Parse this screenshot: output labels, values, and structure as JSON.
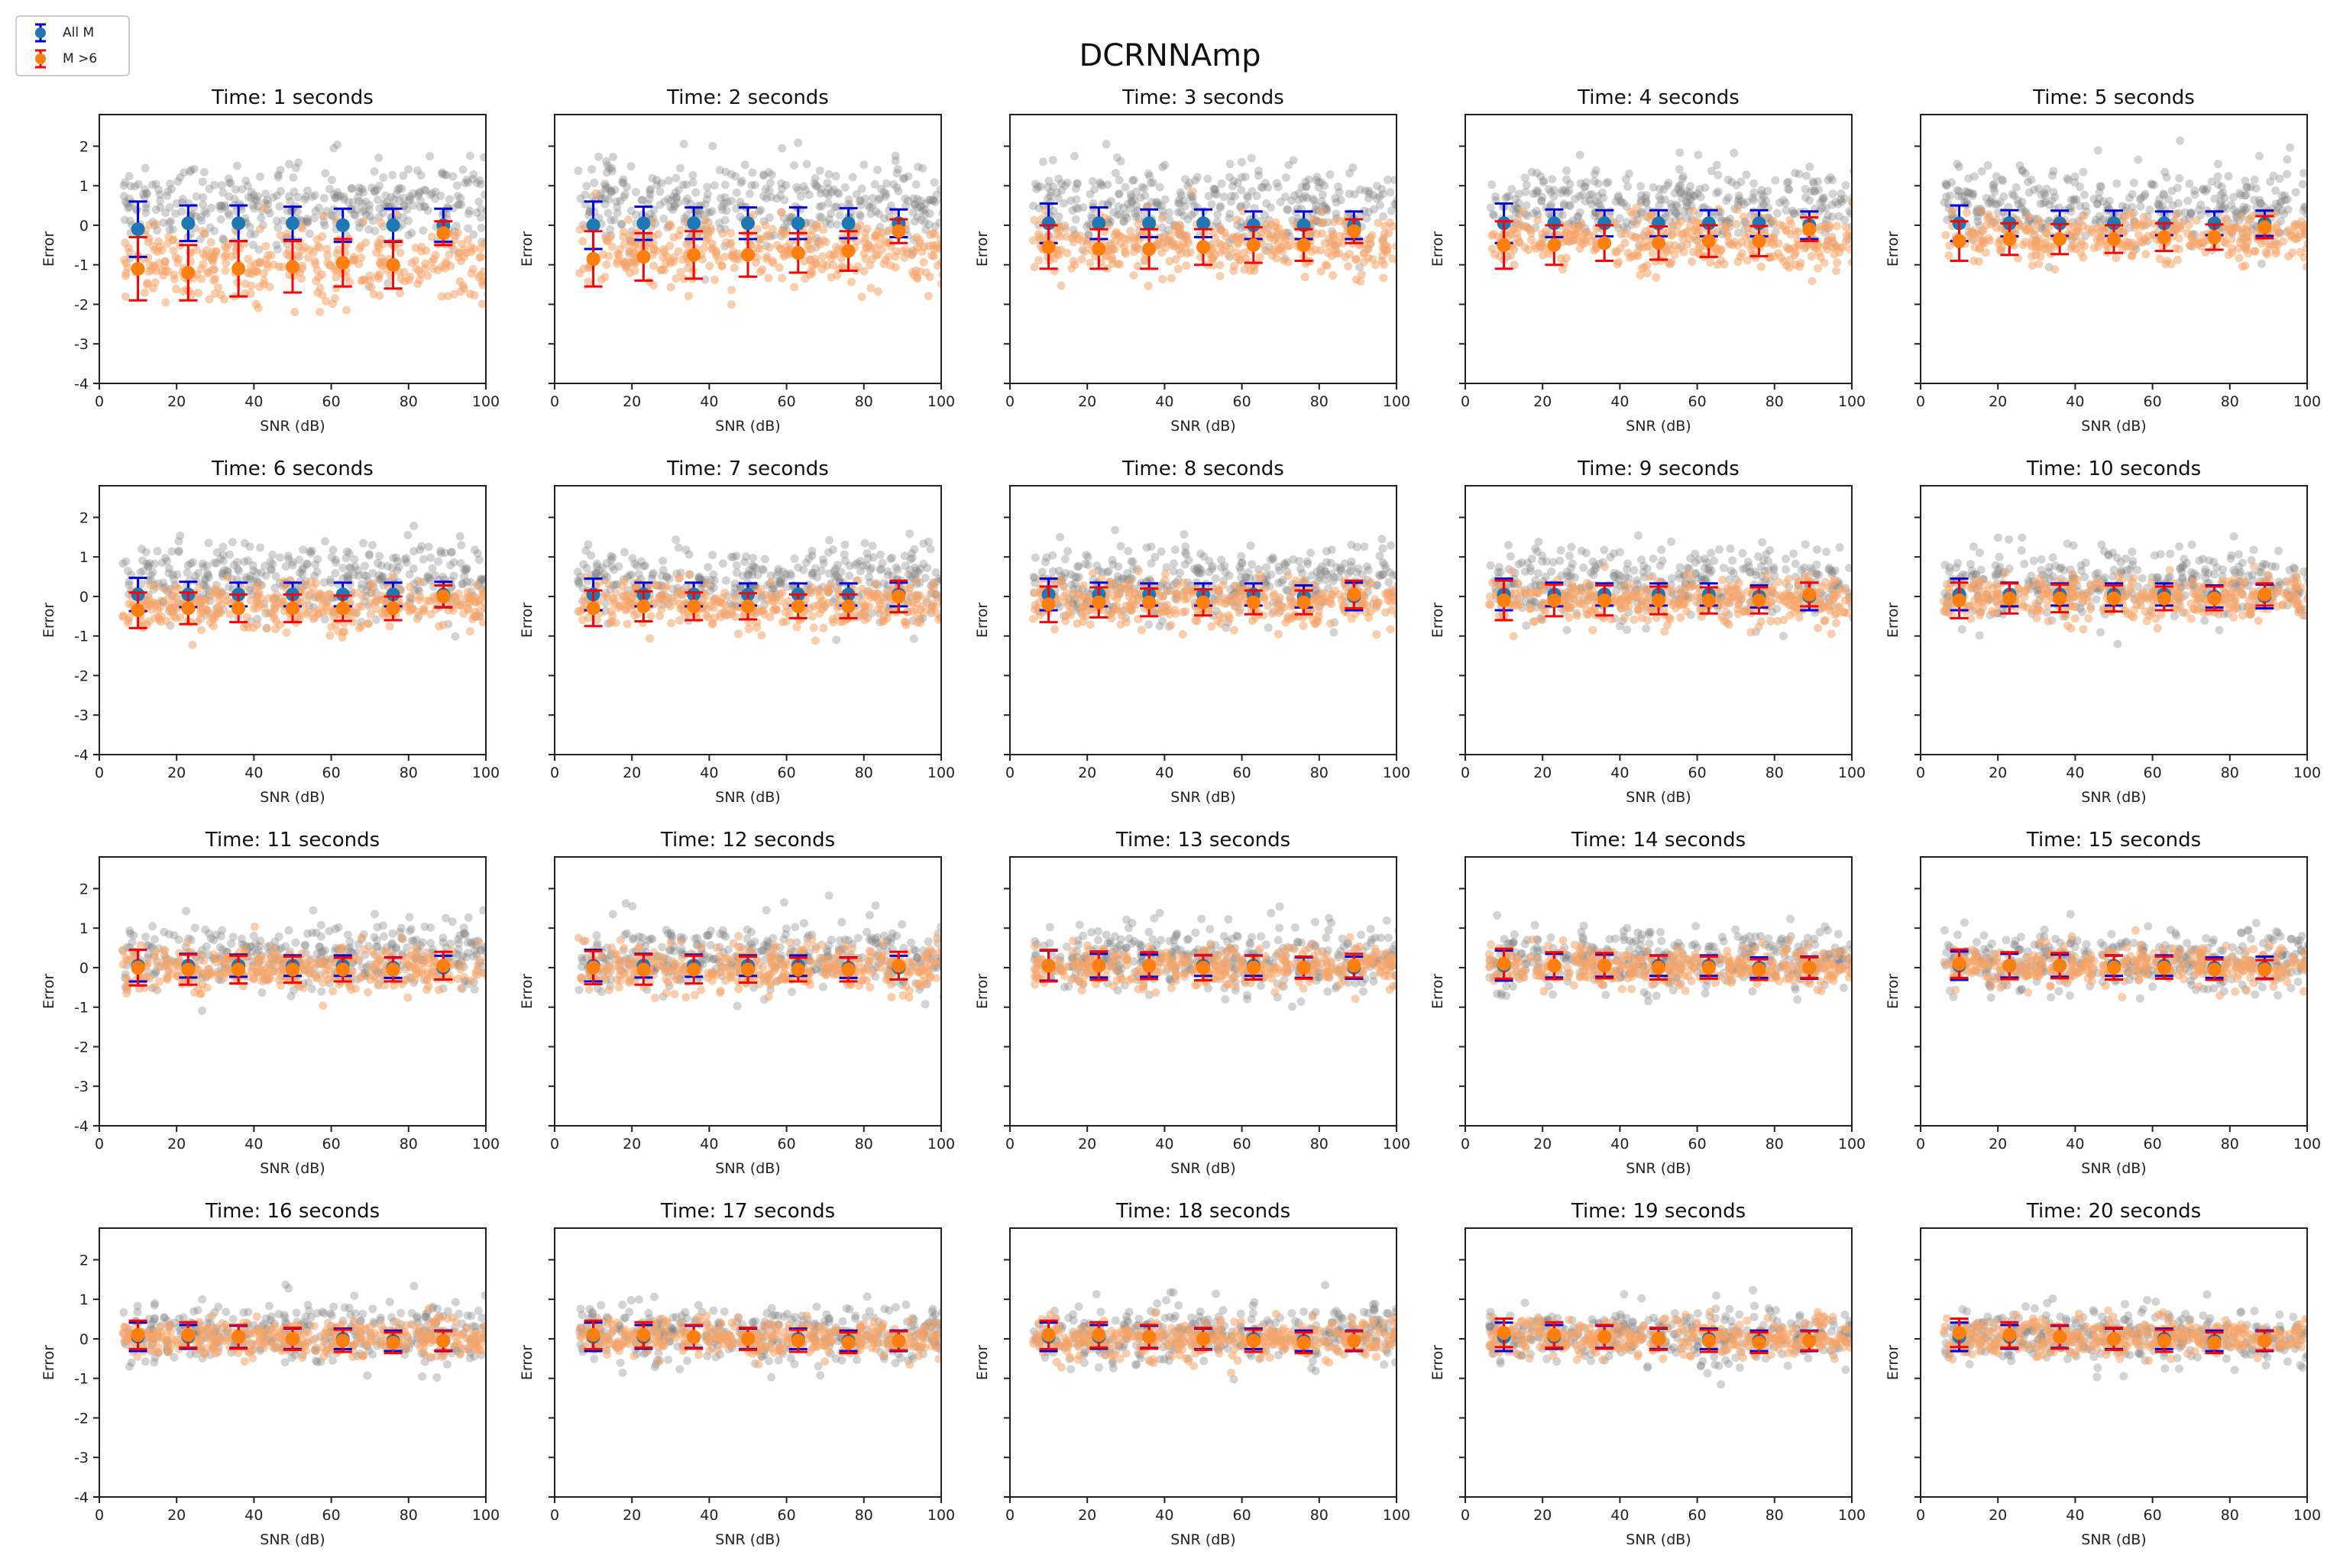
{
  "figure": {
    "title": "DCRNNAmp",
    "legend": [
      {
        "label": "All M",
        "color": "#1f77b4",
        "bar_color": "#0000dd"
      },
      {
        "label": "M >6",
        "color": "#ff7f0e",
        "bar_color": "#ff0000"
      }
    ]
  },
  "chart_data": {
    "type": "scatter",
    "layout": "4x5 subplots",
    "xlabel": "SNR (dB)",
    "ylabel": "Error",
    "xlim": [
      0,
      100
    ],
    "ylim": [
      -4,
      2.8
    ],
    "xticks": [
      0,
      20,
      40,
      60,
      80,
      100
    ],
    "yticks": [
      -4,
      -3,
      -2,
      -1,
      0,
      1,
      2
    ],
    "grid": false,
    "bin_centers": [
      10,
      23,
      36,
      50,
      63,
      76,
      89
    ],
    "background_points": {
      "all_color": "#808080",
      "m6_color": "#f5a467"
    },
    "panels": [
      {
        "title": "Time: 1 seconds",
        "all_m": [
          [
            -0.1,
            0.7
          ],
          [
            0.05,
            0.45
          ],
          [
            0.05,
            0.45
          ],
          [
            0.05,
            0.42
          ],
          [
            0.0,
            0.42
          ],
          [
            0.0,
            0.42
          ],
          [
            0.0,
            0.42
          ]
        ],
        "m6": [
          [
            -1.1,
            0.8
          ],
          [
            -1.2,
            0.7
          ],
          [
            -1.1,
            0.7
          ],
          [
            -1.05,
            0.65
          ],
          [
            -0.95,
            0.6
          ],
          [
            -1.0,
            0.6
          ],
          [
            -0.2,
            0.3
          ]
        ]
      },
      {
        "title": "Time: 2 seconds",
        "all_m": [
          [
            0.0,
            0.6
          ],
          [
            0.05,
            0.42
          ],
          [
            0.05,
            0.4
          ],
          [
            0.05,
            0.4
          ],
          [
            0.05,
            0.4
          ],
          [
            0.05,
            0.38
          ],
          [
            0.05,
            0.35
          ]
        ],
        "m6": [
          [
            -0.85,
            0.7
          ],
          [
            -0.8,
            0.6
          ],
          [
            -0.75,
            0.6
          ],
          [
            -0.75,
            0.55
          ],
          [
            -0.7,
            0.5
          ],
          [
            -0.65,
            0.5
          ],
          [
            -0.15,
            0.3
          ]
        ]
      },
      {
        "title": "Time: 3 seconds",
        "all_m": [
          [
            0.05,
            0.5
          ],
          [
            0.05,
            0.4
          ],
          [
            0.05,
            0.35
          ],
          [
            0.05,
            0.35
          ],
          [
            0.0,
            0.35
          ],
          [
            0.0,
            0.35
          ],
          [
            0.0,
            0.35
          ]
        ],
        "m6": [
          [
            -0.55,
            0.55
          ],
          [
            -0.6,
            0.5
          ],
          [
            -0.6,
            0.5
          ],
          [
            -0.55,
            0.45
          ],
          [
            -0.5,
            0.45
          ],
          [
            -0.5,
            0.4
          ],
          [
            -0.15,
            0.3
          ]
        ]
      },
      {
        "title": "Time: 4 seconds",
        "all_m": [
          [
            0.05,
            0.5
          ],
          [
            0.05,
            0.35
          ],
          [
            0.05,
            0.33
          ],
          [
            0.05,
            0.33
          ],
          [
            0.05,
            0.33
          ],
          [
            0.05,
            0.33
          ],
          [
            0.0,
            0.35
          ]
        ],
        "m6": [
          [
            -0.5,
            0.6
          ],
          [
            -0.5,
            0.5
          ],
          [
            -0.45,
            0.45
          ],
          [
            -0.45,
            0.42
          ],
          [
            -0.4,
            0.4
          ],
          [
            -0.4,
            0.38
          ],
          [
            -0.1,
            0.3
          ]
        ]
      },
      {
        "title": "Time: 5 seconds",
        "all_m": [
          [
            0.05,
            0.45
          ],
          [
            0.05,
            0.33
          ],
          [
            0.05,
            0.32
          ],
          [
            0.05,
            0.32
          ],
          [
            0.05,
            0.3
          ],
          [
            0.05,
            0.3
          ],
          [
            0.05,
            0.32
          ]
        ],
        "m6": [
          [
            -0.4,
            0.5
          ],
          [
            -0.35,
            0.4
          ],
          [
            -0.35,
            0.38
          ],
          [
            -0.35,
            0.35
          ],
          [
            -0.3,
            0.35
          ],
          [
            -0.3,
            0.32
          ],
          [
            -0.05,
            0.28
          ]
        ]
      },
      {
        "title": "Time: 6 seconds",
        "all_m": [
          [
            0.05,
            0.42
          ],
          [
            0.05,
            0.32
          ],
          [
            0.05,
            0.3
          ],
          [
            0.05,
            0.3
          ],
          [
            0.05,
            0.3
          ],
          [
            0.05,
            0.3
          ],
          [
            0.05,
            0.32
          ]
        ],
        "m6": [
          [
            -0.35,
            0.45
          ],
          [
            -0.3,
            0.4
          ],
          [
            -0.3,
            0.35
          ],
          [
            -0.3,
            0.35
          ],
          [
            -0.3,
            0.32
          ],
          [
            -0.3,
            0.3
          ],
          [
            0.0,
            0.28
          ]
        ]
      },
      {
        "title": "Time: 7 seconds",
        "all_m": [
          [
            0.05,
            0.4
          ],
          [
            0.05,
            0.3
          ],
          [
            0.05,
            0.3
          ],
          [
            0.05,
            0.28
          ],
          [
            0.05,
            0.28
          ],
          [
            0.05,
            0.28
          ],
          [
            0.05,
            0.3
          ]
        ],
        "m6": [
          [
            -0.3,
            0.45
          ],
          [
            -0.25,
            0.38
          ],
          [
            -0.25,
            0.35
          ],
          [
            -0.25,
            0.33
          ],
          [
            -0.25,
            0.3
          ],
          [
            -0.25,
            0.3
          ],
          [
            0.0,
            0.4
          ]
        ]
      },
      {
        "title": "Time: 8 seconds",
        "all_m": [
          [
            0.05,
            0.4
          ],
          [
            0.05,
            0.3
          ],
          [
            0.05,
            0.28
          ],
          [
            0.05,
            0.28
          ],
          [
            0.05,
            0.28
          ],
          [
            0.0,
            0.28
          ],
          [
            0.0,
            0.35
          ]
        ],
        "m6": [
          [
            -0.2,
            0.45
          ],
          [
            -0.15,
            0.38
          ],
          [
            -0.15,
            0.35
          ],
          [
            -0.15,
            0.33
          ],
          [
            -0.15,
            0.3
          ],
          [
            -0.15,
            0.3
          ],
          [
            0.05,
            0.35
          ]
        ]
      },
      {
        "title": "Time: 9 seconds",
        "all_m": [
          [
            0.05,
            0.4
          ],
          [
            0.05,
            0.3
          ],
          [
            0.05,
            0.28
          ],
          [
            0.05,
            0.28
          ],
          [
            0.05,
            0.28
          ],
          [
            0.0,
            0.28
          ],
          [
            0.0,
            0.35
          ]
        ],
        "m6": [
          [
            -0.1,
            0.5
          ],
          [
            -0.1,
            0.4
          ],
          [
            -0.1,
            0.38
          ],
          [
            -0.1,
            0.35
          ],
          [
            -0.1,
            0.33
          ],
          [
            -0.1,
            0.33
          ],
          [
            0.05,
            0.3
          ]
        ]
      },
      {
        "title": "Time: 10 seconds",
        "all_m": [
          [
            0.05,
            0.4
          ],
          [
            0.05,
            0.3
          ],
          [
            0.05,
            0.28
          ],
          [
            0.05,
            0.28
          ],
          [
            0.05,
            0.28
          ],
          [
            0.0,
            0.28
          ],
          [
            0.0,
            0.3
          ]
        ],
        "m6": [
          [
            -0.1,
            0.45
          ],
          [
            -0.05,
            0.38
          ],
          [
            -0.05,
            0.35
          ],
          [
            -0.05,
            0.33
          ],
          [
            -0.05,
            0.3
          ],
          [
            -0.05,
            0.3
          ],
          [
            0.05,
            0.28
          ]
        ]
      },
      {
        "title": "Time: 11 seconds",
        "all_m": [
          [
            0.05,
            0.4
          ],
          [
            0.05,
            0.3
          ],
          [
            0.05,
            0.28
          ],
          [
            0.05,
            0.26
          ],
          [
            0.05,
            0.26
          ],
          [
            0.0,
            0.26
          ],
          [
            0.0,
            0.3
          ]
        ],
        "m6": [
          [
            0.0,
            0.45
          ],
          [
            -0.05,
            0.38
          ],
          [
            -0.05,
            0.35
          ],
          [
            -0.05,
            0.33
          ],
          [
            -0.05,
            0.3
          ],
          [
            -0.05,
            0.3
          ],
          [
            0.05,
            0.35
          ]
        ]
      },
      {
        "title": "Time: 12 seconds",
        "all_m": [
          [
            0.05,
            0.4
          ],
          [
            0.05,
            0.3
          ],
          [
            0.05,
            0.28
          ],
          [
            0.05,
            0.26
          ],
          [
            0.05,
            0.26
          ],
          [
            0.0,
            0.26
          ],
          [
            0.0,
            0.3
          ]
        ],
        "m6": [
          [
            0.0,
            0.42
          ],
          [
            -0.05,
            0.38
          ],
          [
            -0.05,
            0.35
          ],
          [
            -0.05,
            0.33
          ],
          [
            -0.05,
            0.3
          ],
          [
            -0.05,
            0.3
          ],
          [
            0.05,
            0.35
          ]
        ]
      },
      {
        "title": "Time: 13 seconds",
        "all_m": [
          [
            0.05,
            0.38
          ],
          [
            0.05,
            0.3
          ],
          [
            0.05,
            0.28
          ],
          [
            0.05,
            0.26
          ],
          [
            0.05,
            0.26
          ],
          [
            0.0,
            0.26
          ],
          [
            0.0,
            0.28
          ]
        ],
        "m6": [
          [
            0.05,
            0.4
          ],
          [
            0.05,
            0.36
          ],
          [
            0.05,
            0.34
          ],
          [
            0.0,
            0.32
          ],
          [
            0.0,
            0.3
          ],
          [
            0.0,
            0.28
          ],
          [
            0.05,
            0.3
          ]
        ]
      },
      {
        "title": "Time: 14 seconds",
        "all_m": [
          [
            0.05,
            0.38
          ],
          [
            0.05,
            0.3
          ],
          [
            0.05,
            0.28
          ],
          [
            0.05,
            0.26
          ],
          [
            0.05,
            0.26
          ],
          [
            0.0,
            0.26
          ],
          [
            0.0,
            0.28
          ]
        ],
        "m6": [
          [
            0.1,
            0.38
          ],
          [
            0.05,
            0.34
          ],
          [
            0.05,
            0.32
          ],
          [
            0.0,
            0.3
          ],
          [
            0.0,
            0.28
          ],
          [
            -0.05,
            0.26
          ],
          [
            0.0,
            0.26
          ]
        ]
      },
      {
        "title": "Time: 15 seconds",
        "all_m": [
          [
            0.05,
            0.36
          ],
          [
            0.05,
            0.3
          ],
          [
            0.05,
            0.28
          ],
          [
            0.05,
            0.26
          ],
          [
            0.05,
            0.26
          ],
          [
            0.0,
            0.26
          ],
          [
            0.0,
            0.28
          ]
        ],
        "m6": [
          [
            0.1,
            0.36
          ],
          [
            0.05,
            0.34
          ],
          [
            0.05,
            0.32
          ],
          [
            0.0,
            0.3
          ],
          [
            0.0,
            0.28
          ],
          [
            -0.05,
            0.26
          ],
          [
            -0.05,
            0.24
          ]
        ]
      },
      {
        "title": "Time: 16 seconds",
        "all_m": [
          [
            0.05,
            0.36
          ],
          [
            0.05,
            0.3
          ],
          [
            0.05,
            0.28
          ],
          [
            0.0,
            0.26
          ],
          [
            0.0,
            0.26
          ],
          [
            -0.05,
            0.26
          ],
          [
            -0.05,
            0.26
          ]
        ],
        "m6": [
          [
            0.1,
            0.36
          ],
          [
            0.1,
            0.32
          ],
          [
            0.05,
            0.3
          ],
          [
            0.0,
            0.28
          ],
          [
            -0.05,
            0.28
          ],
          [
            -0.1,
            0.26
          ],
          [
            -0.05,
            0.24
          ]
        ]
      },
      {
        "title": "Time: 17 seconds",
        "all_m": [
          [
            0.05,
            0.36
          ],
          [
            0.05,
            0.3
          ],
          [
            0.05,
            0.28
          ],
          [
            0.0,
            0.26
          ],
          [
            0.0,
            0.26
          ],
          [
            -0.05,
            0.26
          ],
          [
            -0.05,
            0.26
          ]
        ],
        "m6": [
          [
            0.1,
            0.36
          ],
          [
            0.1,
            0.32
          ],
          [
            0.05,
            0.3
          ],
          [
            0.0,
            0.28
          ],
          [
            -0.05,
            0.28
          ],
          [
            -0.1,
            0.26
          ],
          [
            -0.05,
            0.24
          ]
        ]
      },
      {
        "title": "Time: 18 seconds",
        "all_m": [
          [
            0.05,
            0.36
          ],
          [
            0.05,
            0.3
          ],
          [
            0.05,
            0.28
          ],
          [
            0.0,
            0.26
          ],
          [
            0.0,
            0.26
          ],
          [
            -0.05,
            0.26
          ],
          [
            -0.05,
            0.26
          ]
        ],
        "m6": [
          [
            0.1,
            0.36
          ],
          [
            0.1,
            0.32
          ],
          [
            0.05,
            0.3
          ],
          [
            0.0,
            0.28
          ],
          [
            -0.05,
            0.28
          ],
          [
            -0.1,
            0.26
          ],
          [
            -0.05,
            0.24
          ]
        ]
      },
      {
        "title": "Time: 19 seconds",
        "all_m": [
          [
            0.05,
            0.36
          ],
          [
            0.05,
            0.3
          ],
          [
            0.05,
            0.28
          ],
          [
            0.0,
            0.26
          ],
          [
            0.0,
            0.26
          ],
          [
            -0.05,
            0.26
          ],
          [
            -0.05,
            0.26
          ]
        ],
        "m6": [
          [
            0.15,
            0.36
          ],
          [
            0.1,
            0.32
          ],
          [
            0.05,
            0.3
          ],
          [
            0.0,
            0.28
          ],
          [
            -0.05,
            0.28
          ],
          [
            -0.1,
            0.26
          ],
          [
            -0.05,
            0.24
          ]
        ]
      },
      {
        "title": "Time: 20 seconds",
        "all_m": [
          [
            0.05,
            0.36
          ],
          [
            0.05,
            0.3
          ],
          [
            0.05,
            0.28
          ],
          [
            0.0,
            0.26
          ],
          [
            0.0,
            0.26
          ],
          [
            -0.05,
            0.26
          ],
          [
            -0.05,
            0.26
          ]
        ],
        "m6": [
          [
            0.15,
            0.36
          ],
          [
            0.1,
            0.32
          ],
          [
            0.05,
            0.3
          ],
          [
            0.0,
            0.28
          ],
          [
            -0.05,
            0.28
          ],
          [
            -0.1,
            0.26
          ],
          [
            -0.05,
            0.24
          ]
        ]
      }
    ]
  }
}
